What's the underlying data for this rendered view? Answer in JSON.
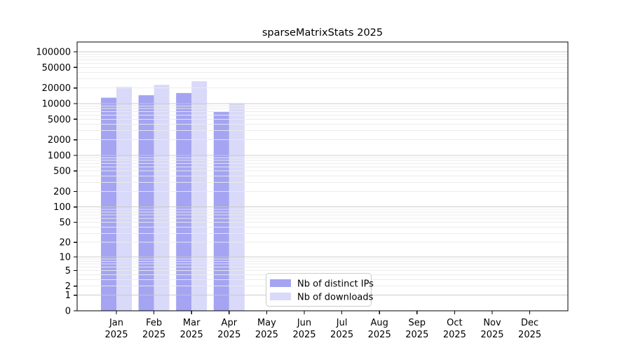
{
  "chart_data": {
    "type": "bar",
    "title": "sparseMatrixStats 2025",
    "x_months": [
      "Jan",
      "Feb",
      "Mar",
      "Apr",
      "May",
      "Jun",
      "Jul",
      "Aug",
      "Sep",
      "Oct",
      "Nov",
      "Dec"
    ],
    "x_year": "2025",
    "categories": [
      "Jan 2025",
      "Feb 2025",
      "Mar 2025",
      "Apr 2025",
      "May 2025",
      "Jun 2025",
      "Jul 2025",
      "Aug 2025",
      "Sep 2025",
      "Oct 2025",
      "Nov 2025",
      "Dec 2025"
    ],
    "series": [
      {
        "name": "Nb of distinct IPs",
        "color": "#a4a4f2",
        "values": [
          13000,
          14500,
          16000,
          7000,
          0,
          0,
          0,
          0,
          0,
          0,
          0,
          0
        ]
      },
      {
        "name": "Nb of downloads",
        "color": "#d9d9f9",
        "values": [
          21000,
          23000,
          27000,
          10000,
          0,
          0,
          0,
          0,
          0,
          0,
          0,
          0
        ]
      }
    ],
    "y_ticks": [
      100000,
      50000,
      20000,
      10000,
      5000,
      2000,
      1000,
      500,
      200,
      100,
      50,
      20,
      10,
      5,
      2,
      1,
      0
    ],
    "yscale": "log10(value+1)",
    "ylim": [
      0,
      153000
    ],
    "xlabel": "",
    "ylabel": "",
    "grid": true,
    "legend_position": "inside-bottom-center",
    "colors": {
      "grid_minor": "#eaeaea",
      "grid_major": "#c8c8c8",
      "axis": "#000000",
      "background": "#ffffff",
      "legend_border": "#cccccc"
    }
  }
}
